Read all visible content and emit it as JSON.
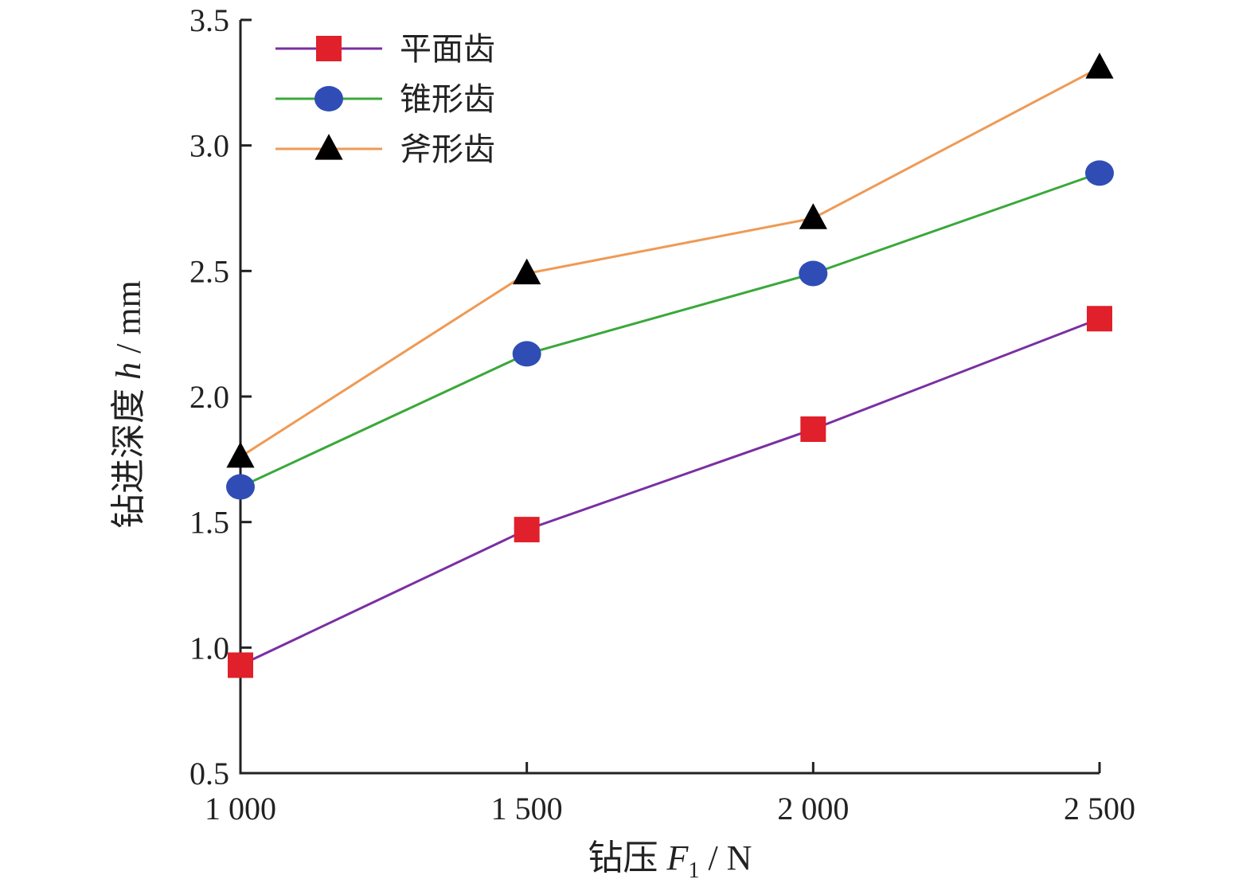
{
  "chart_data": {
    "type": "line",
    "x": [
      1000,
      1500,
      2000,
      2500
    ],
    "x_tick_labels": [
      "1 000",
      "1 500",
      "2 000",
      "2 500"
    ],
    "y_tick_labels": [
      "0.5",
      "1.0",
      "1.5",
      "2.0",
      "2.5",
      "3.0",
      "3.5"
    ],
    "y_ticks": [
      0.5,
      1.0,
      1.5,
      2.0,
      2.5,
      3.0,
      3.5
    ],
    "xlim": [
      1000,
      2500
    ],
    "ylim": [
      0.5,
      3.5
    ],
    "xlabel_prefix": "钻压 ",
    "xlabel_var": "F",
    "xlabel_sub": "1",
    "xlabel_unit": " / N",
    "ylabel_prefix": "钻进深度 ",
    "ylabel_var": "h",
    "ylabel_unit": " / mm",
    "legend_position": "top-left",
    "grid": false,
    "series": [
      {
        "name": "平面齿",
        "values": [
          0.93,
          1.47,
          1.87,
          2.31
        ],
        "line_color": "#7a2fa3",
        "marker": "square",
        "marker_color": "#e0202a"
      },
      {
        "name": "锥形齿",
        "values": [
          1.64,
          2.17,
          2.49,
          2.89
        ],
        "line_color": "#3aa83a",
        "marker": "circle",
        "marker_color": "#2f4db5"
      },
      {
        "name": "斧形齿",
        "values": [
          1.76,
          2.49,
          2.71,
          3.31
        ],
        "line_color": "#ef9a55",
        "marker": "triangle",
        "marker_color": "#000000"
      }
    ]
  }
}
